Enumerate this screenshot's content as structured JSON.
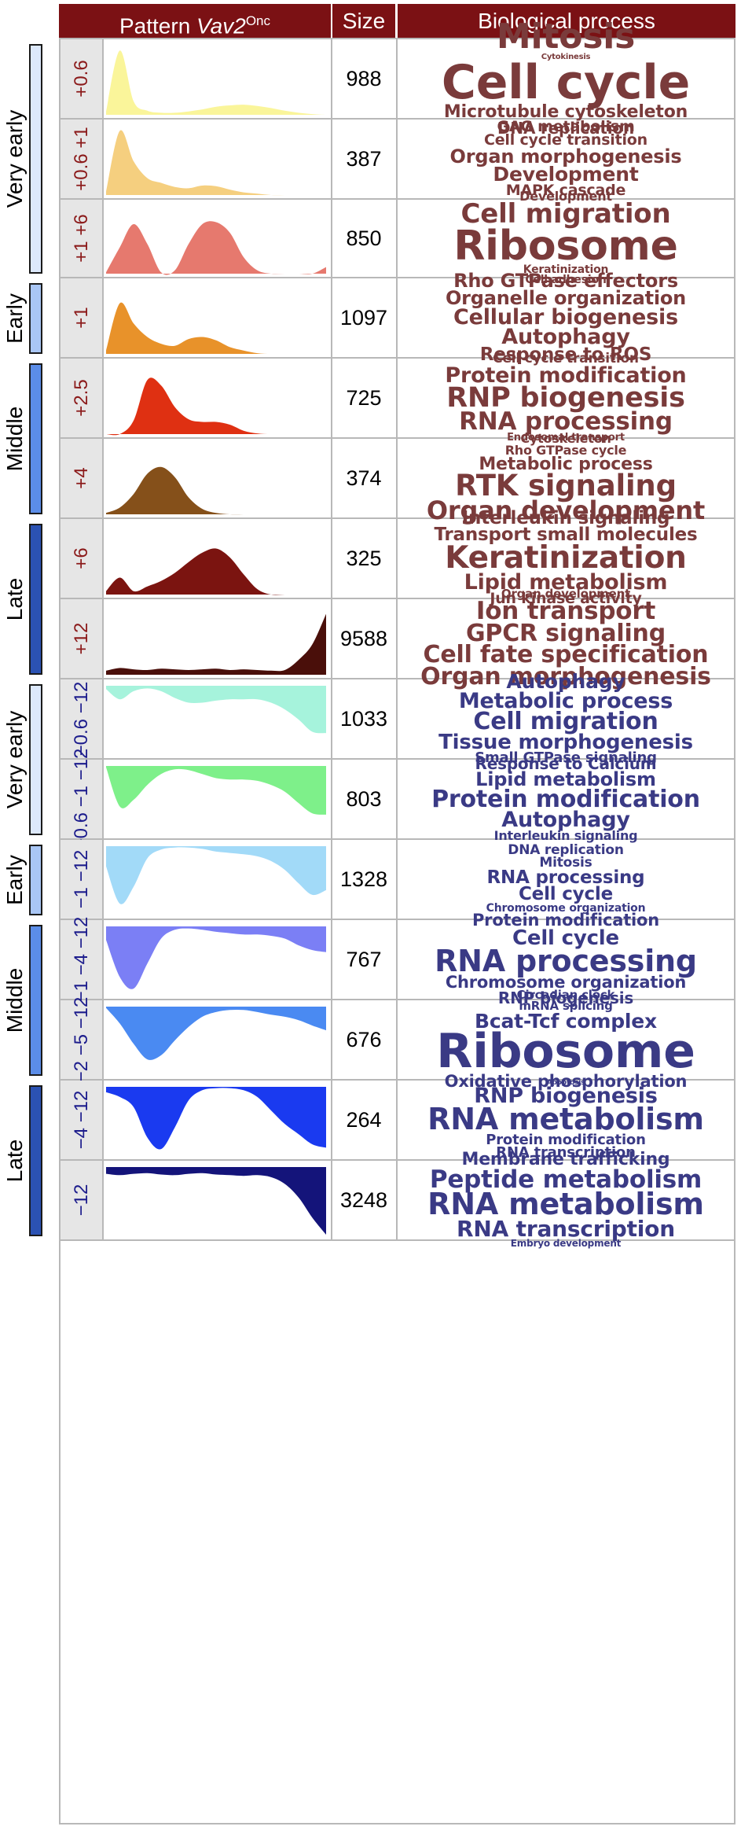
{
  "header": {
    "pattern_prefix": "Pattern ",
    "pattern_gene": "Vav2",
    "pattern_sup": "Onc",
    "size": "Size",
    "process": "Biological process"
  },
  "colors": {
    "header_bg": "#7b1114",
    "up_label": "#8b1a1a",
    "down_label": "#1c1c8c",
    "up_words": "#7a3b3b",
    "down_words": "#3a3a85"
  },
  "stages": [
    {
      "label": "Very early",
      "color": "#dce8fb"
    },
    {
      "label": "Early",
      "color": "#a9c6f5"
    },
    {
      "label": "Middle",
      "color": "#5b8de8"
    },
    {
      "label": "Late",
      "color": "#2b52b3"
    },
    {
      "label": "Very early",
      "color": "#dce8fb"
    },
    {
      "label": "Early",
      "color": "#a9c6f5"
    },
    {
      "label": "Middle",
      "color": "#5b8de8"
    },
    {
      "label": "Late",
      "color": "#2b52b3"
    }
  ],
  "rows": [
    {
      "label": "+0.6",
      "size": "988",
      "color": "#faf59a",
      "dir": "up",
      "profile": [
        0.05,
        0.95,
        0.2,
        0.06,
        0.03,
        0.03,
        0.05,
        0.08,
        0.12,
        0.14,
        0.15,
        0.13,
        0.1,
        0.06,
        0.03,
        0.01,
        0.0
      ],
      "words": [
        {
          "t": "Mitosis",
          "s": 44
        },
        {
          "t": "Cytokinesis",
          "s": 10
        },
        {
          "t": "Cell cycle",
          "s": 60
        },
        {
          "t": "Microtubule cytoskeleton",
          "s": 22
        },
        {
          "t": "DNA replication",
          "s": 20
        }
      ]
    },
    {
      "label": "+0.6 +1",
      "size": "387",
      "color": "#f5cf7f",
      "dir": "up",
      "profile": [
        0.05,
        0.95,
        0.5,
        0.25,
        0.18,
        0.12,
        0.1,
        0.14,
        0.13,
        0.08,
        0.04,
        0.02,
        0.0,
        0.0,
        0.0,
        0.0,
        0.0
      ],
      "words": [
        {
          "t": "GAG metabolism",
          "s": 19
        },
        {
          "t": "Cell cycle transition",
          "s": 19
        },
        {
          "t": "Organ morphogenesis",
          "s": 24
        },
        {
          "t": "Development",
          "s": 25
        },
        {
          "t": "MAPK cascade",
          "s": 19
        }
      ]
    },
    {
      "label": "+1 +6",
      "size": "850",
      "color": "#e6796e",
      "dir": "up",
      "profile": [
        0.02,
        0.4,
        0.75,
        0.45,
        0.02,
        0.05,
        0.45,
        0.75,
        0.78,
        0.62,
        0.25,
        0.05,
        0.0,
        0.0,
        0.0,
        0.0,
        0.1
      ],
      "words": [
        {
          "t": "Development",
          "s": 16
        },
        {
          "t": "Cell migration",
          "s": 34
        },
        {
          "t": "Ribosome",
          "s": 52
        },
        {
          "t": "Keratinization",
          "s": 14
        },
        {
          "t": "Cell adhesion",
          "s": 14
        }
      ]
    },
    {
      "label": "+1",
      "size": "1097",
      "color": "#e8922a",
      "dir": "up",
      "profile": [
        0.05,
        0.75,
        0.45,
        0.25,
        0.15,
        0.12,
        0.22,
        0.25,
        0.2,
        0.1,
        0.05,
        0.01,
        0.0,
        0.0,
        0.0,
        0.0,
        0.0
      ],
      "words": [
        {
          "t": "Rho GTPase effectors",
          "s": 24
        },
        {
          "t": "Organelle organization",
          "s": 24
        },
        {
          "t": "Cellular biogenesis",
          "s": 27
        },
        {
          "t": "Autophagy",
          "s": 27
        },
        {
          "t": "Response to ROS",
          "s": 23
        }
      ]
    },
    {
      "label": "+2.5",
      "size": "725",
      "color": "#df3012",
      "dir": "up",
      "profile": [
        0.0,
        0.0,
        0.2,
        0.8,
        0.72,
        0.4,
        0.22,
        0.18,
        0.18,
        0.14,
        0.05,
        0.01,
        0.0,
        0.0,
        0.0,
        0.0,
        0.0
      ],
      "words": [
        {
          "t": "Cell cycle transition",
          "s": 17
        },
        {
          "t": "Protein modification",
          "s": 27
        },
        {
          "t": "RNP biogenesis",
          "s": 35
        },
        {
          "t": "RNA processing",
          "s": 31
        },
        {
          "t": "Endosomal transport",
          "s": 13
        }
      ]
    },
    {
      "label": "+4",
      "size": "374",
      "color": "#85501a",
      "dir": "up",
      "profile": [
        0.02,
        0.1,
        0.3,
        0.6,
        0.7,
        0.55,
        0.25,
        0.08,
        0.02,
        0.0,
        0.0,
        0.0,
        0.0,
        0.0,
        0.0,
        0.0,
        0.0
      ],
      "words": [
        {
          "t": "Cytoskeleton",
          "s": 16
        },
        {
          "t": "Rho GTPase cycle",
          "s": 16
        },
        {
          "t": "Metabolic process",
          "s": 22
        },
        {
          "t": "RTK signaling",
          "s": 37
        },
        {
          "t": "Organ development",
          "s": 32
        }
      ]
    },
    {
      "label": "+6",
      "size": "325",
      "color": "#7b1410",
      "dir": "up",
      "profile": [
        0.05,
        0.25,
        0.05,
        0.12,
        0.2,
        0.32,
        0.48,
        0.62,
        0.68,
        0.55,
        0.3,
        0.08,
        0.0,
        0.0,
        0.0,
        0.0,
        0.0
      ],
      "words": [
        {
          "t": "Interleukin signaling",
          "s": 23
        },
        {
          "t": "Transport small molecules",
          "s": 23
        },
        {
          "t": "Keratinization",
          "s": 39
        },
        {
          "t": "Lipid metabolism",
          "s": 27
        },
        {
          "t": "Jun kinase activity",
          "s": 19
        }
      ]
    },
    {
      "label": "+12",
      "size": "9588",
      "color": "#4a0f0a",
      "dir": "up",
      "profile": [
        0.06,
        0.1,
        0.08,
        0.07,
        0.09,
        0.08,
        0.07,
        0.08,
        0.09,
        0.07,
        0.08,
        0.07,
        0.06,
        0.07,
        0.22,
        0.45,
        0.9
      ],
      "words": [
        {
          "t": "Organ development",
          "s": 15
        },
        {
          "t": "Ion transport",
          "s": 31
        },
        {
          "t": "GPCR signaling",
          "s": 30
        },
        {
          "t": "Cell fate specification",
          "s": 30
        },
        {
          "t": "Organ morphogenesis",
          "s": 30
        }
      ]
    },
    {
      "label": "−0.6 −12",
      "size": "1033",
      "color": "#a6f3dc",
      "dir": "down",
      "profile": [
        0.05,
        0.2,
        0.08,
        0.04,
        0.08,
        0.18,
        0.25,
        0.25,
        0.22,
        0.2,
        0.2,
        0.2,
        0.25,
        0.35,
        0.5,
        0.68,
        0.7
      ],
      "words": [
        {
          "t": "Autophagy",
          "s": 25
        },
        {
          "t": "Metabolic process",
          "s": 27
        },
        {
          "t": "Cell migration",
          "s": 30
        },
        {
          "t": "Tissue morphogenesis",
          "s": 26
        },
        {
          "t": "Small GTPase signaling",
          "s": 18
        }
      ]
    },
    {
      "label": "−0.6 −1 −12",
      "size": "803",
      "color": "#7ef08a",
      "dir": "down",
      "profile": [
        0.02,
        0.6,
        0.5,
        0.28,
        0.12,
        0.05,
        0.06,
        0.12,
        0.18,
        0.2,
        0.2,
        0.22,
        0.28,
        0.38,
        0.55,
        0.7,
        0.72
      ],
      "words": [
        {
          "t": "Response to Calcium",
          "s": 20
        },
        {
          "t": "Lipid metabolism",
          "s": 24
        },
        {
          "t": "Protein modification",
          "s": 30
        },
        {
          "t": "Autophagy",
          "s": 27
        },
        {
          "t": "Interleukin signaling",
          "s": 16
        }
      ]
    },
    {
      "label": "−1 −12",
      "size": "1328",
      "color": "#a2daf8",
      "dir": "down",
      "profile": [
        0.3,
        0.85,
        0.6,
        0.18,
        0.05,
        0.02,
        0.02,
        0.04,
        0.08,
        0.1,
        0.12,
        0.15,
        0.22,
        0.35,
        0.55,
        0.72,
        0.65
      ],
      "words": [
        {
          "t": "DNA replication",
          "s": 17
        },
        {
          "t": "Mitosis",
          "s": 17
        },
        {
          "t": "RNA processing",
          "s": 23
        },
        {
          "t": "Cell cycle",
          "s": 23
        },
        {
          "t": "Chromosome organization",
          "s": 14
        }
      ]
    },
    {
      "label": "−1 −4 −12",
      "size": "767",
      "color": "#7b7ff5",
      "dir": "down",
      "profile": [
        0.2,
        0.75,
        0.92,
        0.55,
        0.18,
        0.05,
        0.03,
        0.05,
        0.08,
        0.1,
        0.12,
        0.12,
        0.14,
        0.18,
        0.28,
        0.35,
        0.38
      ],
      "words": [
        {
          "t": "Protein modification",
          "s": 21
        },
        {
          "t": "Cell cycle",
          "s": 26
        },
        {
          "t": "RNA processing",
          "s": 38
        },
        {
          "t": "Chromosome organization",
          "s": 21
        },
        {
          "t": "RNP biogenesis",
          "s": 20
        }
      ]
    },
    {
      "label": "−2 −5 −12",
      "size": "676",
      "color": "#4a8af2",
      "dir": "down",
      "profile": [
        0.02,
        0.25,
        0.55,
        0.78,
        0.72,
        0.5,
        0.3,
        0.15,
        0.08,
        0.05,
        0.05,
        0.08,
        0.12,
        0.15,
        0.2,
        0.28,
        0.35
      ],
      "words": [
        {
          "t": "Circadian clock",
          "s": 15
        },
        {
          "t": "mRNA splicing",
          "s": 15
        },
        {
          "t": "Bcat-Tcf complex",
          "s": 25
        },
        {
          "t": "Ribosome",
          "s": 60
        },
        {
          "t": "Oxidative phosphorylation",
          "s": 21
        }
      ]
    },
    {
      "label": "−4 −12",
      "size": "264",
      "color": "#1a3af0",
      "dir": "down",
      "profile": [
        0.08,
        0.15,
        0.3,
        0.75,
        0.92,
        0.6,
        0.2,
        0.05,
        0.02,
        0.02,
        0.05,
        0.15,
        0.35,
        0.55,
        0.7,
        0.85,
        0.9
      ],
      "words": [
        {
          "t": "Apoptosis",
          "s": 9
        },
        {
          "t": "RNP biogenesis",
          "s": 27
        },
        {
          "t": "RNA metabolism",
          "s": 38
        },
        {
          "t": "Protein modification",
          "s": 18
        },
        {
          "t": "RNA transcription",
          "s": 18
        }
      ]
    },
    {
      "label": "−12",
      "size": "3248",
      "color": "#14147a",
      "dir": "down",
      "profile": [
        0.1,
        0.12,
        0.1,
        0.09,
        0.11,
        0.12,
        0.1,
        0.09,
        0.11,
        0.12,
        0.13,
        0.12,
        0.15,
        0.25,
        0.45,
        0.75,
        1.0
      ],
      "words": [
        {
          "t": "Membrane trafficking",
          "s": 22
        },
        {
          "t": "Peptide metabolism",
          "s": 31
        },
        {
          "t": "RNA metabolism",
          "s": 38
        },
        {
          "t": "RNA transcription",
          "s": 28
        },
        {
          "t": "Embryo development",
          "s": 12
        }
      ]
    }
  ]
}
